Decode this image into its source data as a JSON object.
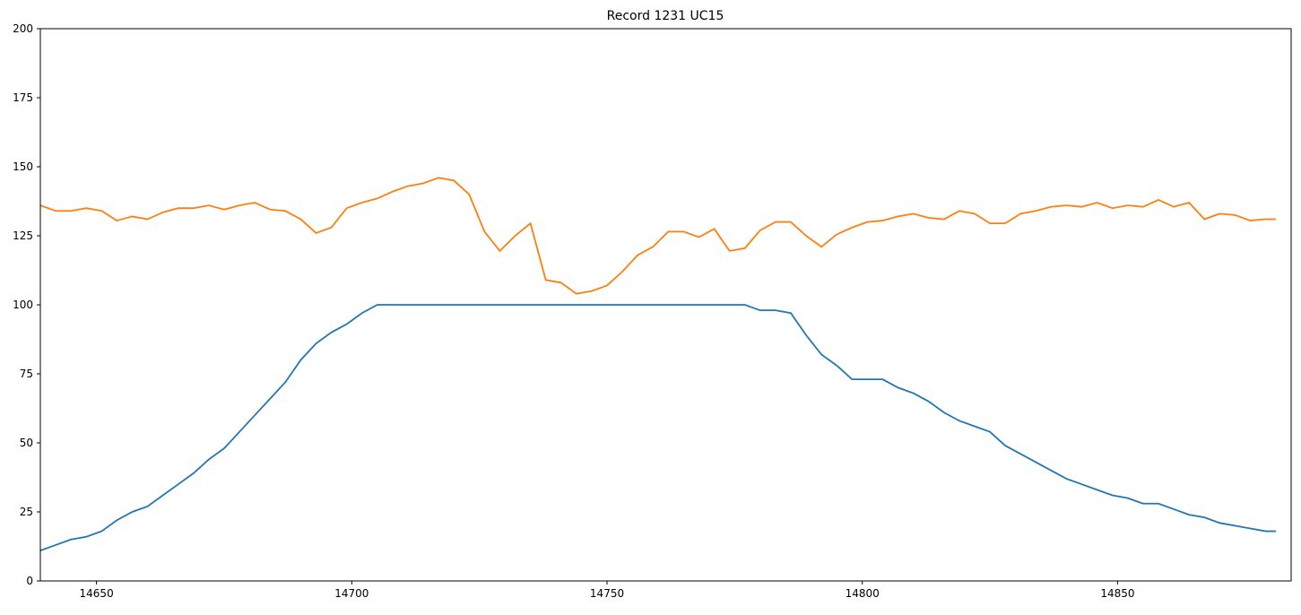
{
  "chart_data": {
    "type": "line",
    "title": "Record 1231 UC15",
    "x": [
      14639,
      14642,
      14645,
      14648,
      14651,
      14654,
      14657,
      14660,
      14663,
      14666,
      14669,
      14672,
      14675,
      14678,
      14681,
      14684,
      14687,
      14690,
      14693,
      14696,
      14699,
      14702,
      14705,
      14708,
      14711,
      14714,
      14717,
      14720,
      14723,
      14726,
      14729,
      14732,
      14735,
      14738,
      14741,
      14744,
      14747,
      14750,
      14753,
      14756,
      14759,
      14762,
      14765,
      14768,
      14771,
      14774,
      14777,
      14780,
      14783,
      14786,
      14789,
      14792,
      14795,
      14798,
      14801,
      14804,
      14807,
      14810,
      14813,
      14816,
      14819,
      14822,
      14825,
      14828,
      14831,
      14834,
      14837,
      14840,
      14843,
      14846,
      14849,
      14852,
      14855,
      14858,
      14861,
      14864,
      14867,
      14870,
      14873,
      14876,
      14879,
      14881
    ],
    "series": [
      {
        "color": "#1f77b4",
        "values": [
          11,
          13,
          15,
          16,
          18,
          22,
          25,
          27,
          31,
          35,
          39,
          44,
          48,
          54,
          60,
          66,
          72,
          80,
          86,
          90,
          93,
          97,
          100,
          100,
          100,
          100,
          100,
          100,
          100,
          100,
          100,
          100,
          100,
          100,
          100,
          100,
          100,
          100,
          100,
          100,
          100,
          100,
          100,
          100,
          100,
          100,
          100,
          98,
          98,
          97,
          89,
          82,
          78,
          73,
          73,
          73,
          70,
          68,
          65,
          61,
          58,
          56,
          54,
          49,
          46,
          43,
          40,
          37,
          35,
          33,
          31,
          30,
          28,
          28,
          26,
          24,
          23,
          21,
          20,
          19,
          18,
          18
        ]
      },
      {
        "color": "#ff7f0e",
        "values": [
          136,
          134,
          134,
          135,
          134,
          130.5,
          132,
          131,
          133.5,
          135,
          135,
          136,
          134.5,
          136,
          137,
          134.5,
          134,
          131,
          126,
          128,
          135,
          137,
          138.5,
          141,
          143,
          144,
          146,
          145,
          140,
          126.5,
          119.5,
          125,
          129.5,
          109,
          108,
          104,
          105,
          107,
          112,
          118,
          121,
          126.5,
          126.5,
          124.5,
          127.5,
          119.5,
          120.5,
          127,
          130,
          130,
          125,
          121,
          125.5,
          128,
          130,
          130.5,
          132,
          133,
          131.5,
          131,
          134,
          133,
          129.5,
          129.5,
          133,
          134,
          135.5,
          136,
          135.5,
          137,
          135,
          136,
          135.5,
          138,
          135.5,
          137,
          131,
          133,
          132.5,
          130.5,
          131,
          131
        ]
      }
    ],
    "xlim": [
      14639,
      14884
    ],
    "ylim": [
      0,
      200
    ],
    "xticks": [
      14650,
      14700,
      14750,
      14800,
      14850
    ],
    "yticks": [
      0,
      25,
      50,
      75,
      100,
      125,
      150,
      175,
      200
    ]
  }
}
